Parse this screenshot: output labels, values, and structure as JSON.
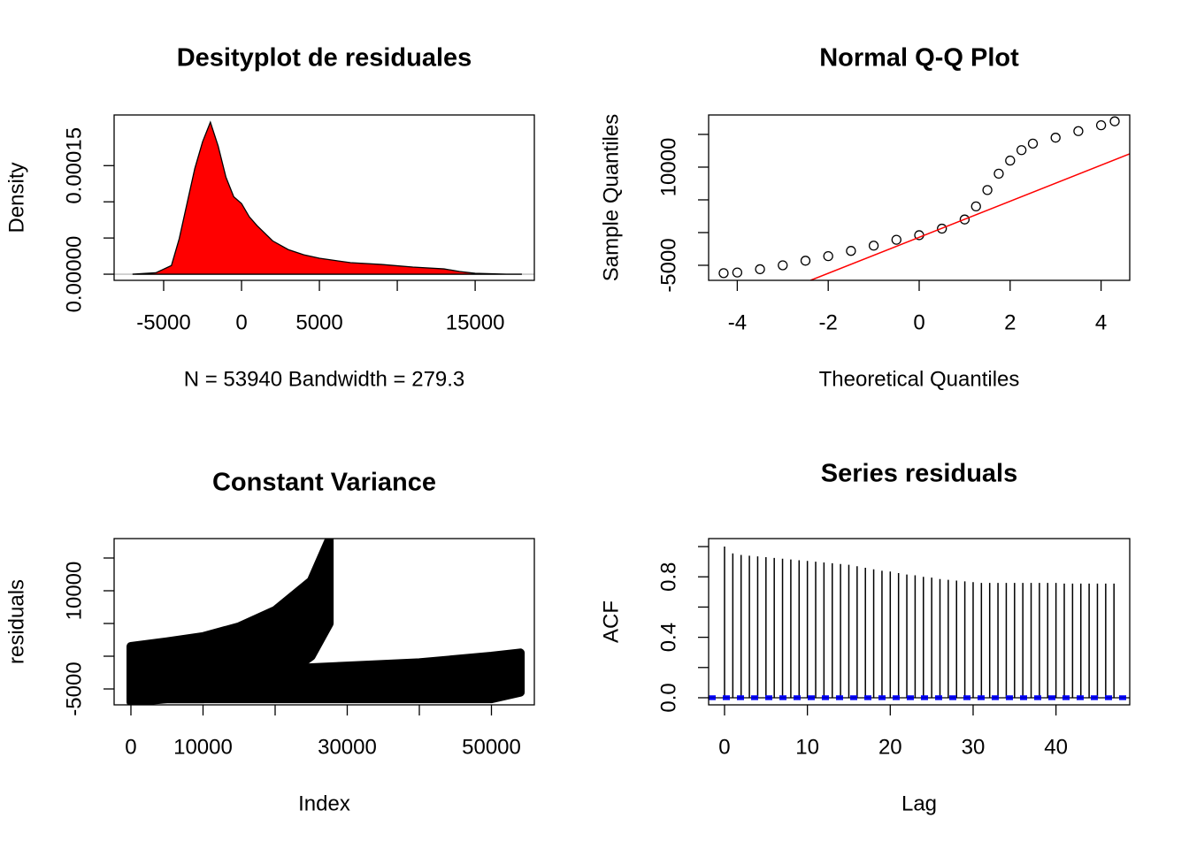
{
  "chart_data": [
    {
      "type": "area",
      "title": "Desityplot de residuales",
      "xlabel": "N = 53940   Bandwidth = 279.3",
      "ylabel": "Density",
      "x": [
        -7000,
        -5500,
        -4500,
        -4000,
        -3500,
        -3000,
        -2500,
        -2000,
        -1500,
        -1000,
        -500,
        0,
        500,
        1000,
        2000,
        3000,
        4000,
        5000,
        7000,
        9000,
        11000,
        13000,
        14000,
        15000,
        17000,
        18000
      ],
      "values": [
        0,
        2e-06,
        1.2e-05,
        4.9e-05,
        9.76e-05,
        0.000146,
        0.000183,
        0.00021,
        0.000177,
        0.000134,
        0.000107,
        9.76e-05,
        7.93e-05,
        6.7e-05,
        4.6e-05,
        3.4e-05,
        2.68e-05,
        2.2e-05,
        1.59e-05,
        1.34e-05,
        9.8e-06,
        7.3e-06,
        3.7e-06,
        1.2e-06,
        0,
        0
      ],
      "color": "red",
      "xlim": [
        -8180,
        18800
      ],
      "ylim": [
        -8.5e-06,
        0.00022
      ],
      "xticks": [
        -5000,
        0,
        5000,
        {
          "value": 10000,
          "label": null
        },
        15000
      ],
      "yticks": [
        {
          "value": 0,
          "label": "0.00000"
        },
        {
          "value": 5e-05,
          "label": null
        },
        {
          "value": 0.0001,
          "label": null
        },
        {
          "value": 0.00015,
          "label": "0.00015"
        }
      ]
    },
    {
      "type": "scatter",
      "title": "Normal Q-Q Plot",
      "xlabel": "Theoretical Quantiles",
      "ylabel": "Sample Quantiles",
      "x": [
        -4.3,
        -4,
        -3.5,
        -3,
        -2.5,
        -2,
        -1.5,
        -1,
        -0.5,
        0,
        0.5,
        1,
        1.25,
        1.5,
        1.75,
        2,
        2.25,
        2.5,
        3,
        3.5,
        4,
        4.3
      ],
      "values": [
        -6200,
        -6100,
        -5600,
        -5000,
        -4300,
        -3600,
        -2800,
        -2000,
        -1100,
        -400,
        600,
        2000,
        4000,
        6500,
        9000,
        11000,
        12600,
        13600,
        14500,
        15500,
        16400,
        17000
      ],
      "color": "black",
      "reference_line": {
        "x": [
          -2.39,
          4.63
        ],
        "values": [
          -7300,
          12030
        ],
        "color": "red"
      },
      "xlim": [
        -4.63,
        4.63
      ],
      "ylim": [
        -7300,
        17970
      ],
      "xticks": [
        -4,
        -2,
        0,
        2,
        4
      ],
      "yticks": [
        -5000,
        {
          "value": 0,
          "label": null
        },
        {
          "value": 5000,
          "label": null
        },
        10000,
        {
          "value": 15000,
          "label": null
        }
      ]
    },
    {
      "type": "band",
      "title": "Constant Variance",
      "xlabel": "Index",
      "ylabel": "residuals",
      "color": "black",
      "bands": [
        {
          "x": [
            0,
            5000,
            10000,
            15000,
            20000,
            25000,
            27500
          ],
          "high": [
            1500,
            2200,
            3000,
            4500,
            7000,
            11500,
            17800
          ],
          "low": [
            -7000,
            -6500,
            -6500,
            -6000,
            -4000,
            0,
            5000
          ]
        },
        {
          "x": [
            0,
            10000,
            20000,
            30000,
            40000,
            50000,
            54000
          ],
          "high": [
            -2000,
            -2000,
            -2000,
            -1500,
            -1000,
            0,
            500
          ],
          "low": [
            -6500,
            -6500,
            -6500,
            -6500,
            -6500,
            -6500,
            -5500
          ]
        }
      ],
      "xlim": [
        -2330,
        55950
      ],
      "ylim": [
        -7430,
        17970
      ],
      "xticks": [
        0,
        10000,
        {
          "value": 20000,
          "label": null
        },
        30000,
        {
          "value": 40000,
          "label": null
        },
        50000
      ],
      "yticks": [
        -5000,
        {
          "value": 0,
          "label": null
        },
        {
          "value": 5000,
          "label": null
        },
        10000,
        {
          "value": 15000,
          "label": null
        }
      ]
    },
    {
      "type": "acf",
      "title": "Series  residuals",
      "xlabel": "Lag",
      "ylabel": "ACF",
      "color": "black",
      "x": [
        0,
        1,
        2,
        3,
        4,
        5,
        6,
        7,
        8,
        9,
        10,
        11,
        12,
        13,
        14,
        15,
        16,
        17,
        18,
        19,
        20,
        21,
        22,
        23,
        24,
        25,
        26,
        27,
        28,
        29,
        30,
        31,
        32,
        33,
        34,
        35,
        36,
        37,
        38,
        39,
        40,
        41,
        42,
        43,
        44,
        45,
        46,
        47
      ],
      "values": [
        1,
        0.955,
        0.945,
        0.94,
        0.935,
        0.93,
        0.925,
        0.92,
        0.915,
        0.91,
        0.905,
        0.9,
        0.895,
        0.89,
        0.885,
        0.88,
        0.87,
        0.86,
        0.85,
        0.84,
        0.835,
        0.825,
        0.815,
        0.81,
        0.8,
        0.795,
        0.785,
        0.78,
        0.775,
        0.77,
        0.765,
        0.76,
        0.76,
        0.76,
        0.76,
        0.76,
        0.76,
        0.76,
        0.76,
        0.76,
        0.76,
        0.755,
        0.755,
        0.755,
        0.755,
        0.755,
        0.755,
        0.755
      ],
      "ci_bounds": [
        -0.0084,
        0.0084
      ],
      "ci_color": "blue",
      "xlim": [
        -1.92,
        48.9
      ],
      "ylim": [
        -0.047,
        1.053
      ],
      "xticks": [
        0,
        10,
        20,
        30,
        40
      ],
      "yticks": [
        {
          "value": 0,
          "label": "0.0"
        },
        {
          "value": 0.2,
          "label": null
        },
        {
          "value": 0.4,
          "label": "0.4"
        },
        {
          "value": 0.6,
          "label": null
        },
        {
          "value": 0.8,
          "label": "0.8"
        },
        {
          "value": 1.0,
          "label": null
        }
      ]
    }
  ]
}
